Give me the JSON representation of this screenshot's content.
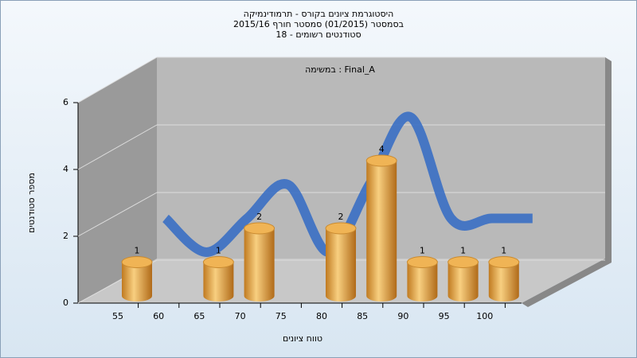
{
  "chart_data": {
    "type": "bar",
    "title": [
      "היסטוגרמת ציונים בקורס - תרמודינמיקה",
      "בסמסטר (01/2015) סמסטר חורף 2015/16",
      "סטודנטים רשומים - 18"
    ],
    "subtitle": "במשימה : Final_A",
    "x_label": "טווח ציונים",
    "y_label": "מספר סטודנטים",
    "categories": [
      "55",
      "60",
      "65",
      "70",
      "75",
      "80",
      "85",
      "90",
      "95",
      "100"
    ],
    "values": [
      1,
      0,
      1,
      2,
      0,
      2,
      4,
      1,
      1,
      1
    ],
    "value_labels": [
      "1",
      null,
      "1",
      "2",
      null,
      "2",
      "4",
      "1",
      "1",
      "1"
    ],
    "color": "#e8a445",
    "line_color": "#3a6fc4",
    "ylim": [
      0,
      6
    ],
    "yticks": [
      0,
      2,
      4,
      6
    ],
    "grid": true
  }
}
